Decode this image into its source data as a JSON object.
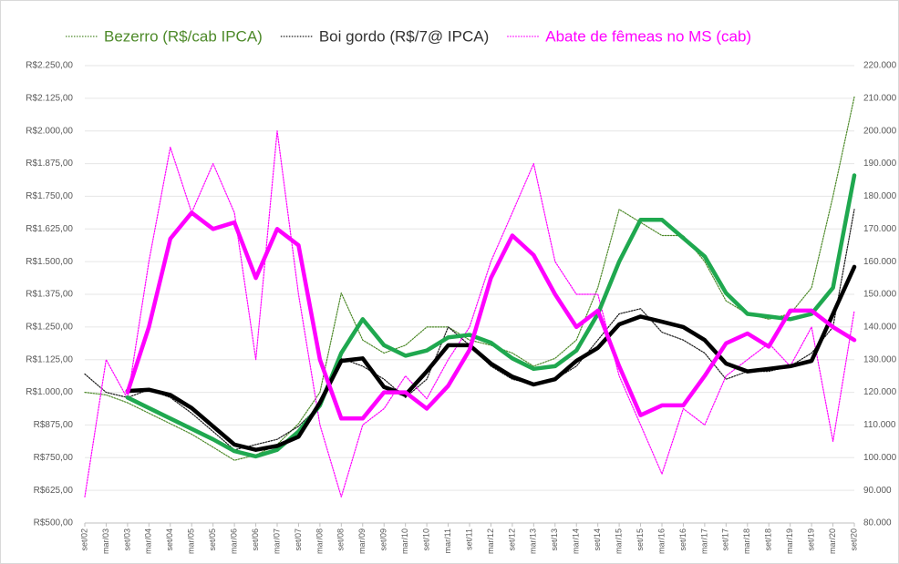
{
  "chart_data": {
    "type": "line",
    "categories": [
      "set/02",
      "mar/03",
      "set/03",
      "mar/04",
      "set/04",
      "mar/05",
      "set/05",
      "mar/06",
      "set/06",
      "mar/07",
      "set/07",
      "mar/08",
      "set/08",
      "mar/09",
      "set/09",
      "mar/10",
      "set/10",
      "mar/11",
      "set/11",
      "mar/12",
      "set/12",
      "mar/13",
      "set/13",
      "mar/14",
      "set/14",
      "mar/15",
      "set/15",
      "mar/16",
      "set/16",
      "mar/17",
      "set/17",
      "mar/18",
      "set/18",
      "mar/19",
      "set/19",
      "mar/20",
      "set/20"
    ],
    "ylim": [
      500,
      2250
    ],
    "yticks": [
      {
        "value": 500,
        "label": "R$500,00"
      },
      {
        "value": 625,
        "label": "R$625,00"
      },
      {
        "value": 750,
        "label": "R$750,00"
      },
      {
        "value": 875,
        "label": "R$875,00"
      },
      {
        "value": 1000,
        "label": "R$1.000,00"
      },
      {
        "value": 1125,
        "label": "R$1.125,00"
      },
      {
        "value": 1250,
        "label": "R$1.250,00"
      },
      {
        "value": 1375,
        "label": "R$1.375,00"
      },
      {
        "value": 1500,
        "label": "R$1.500,00"
      },
      {
        "value": 1625,
        "label": "R$1.625,00"
      },
      {
        "value": 1750,
        "label": "R$1.750,00"
      },
      {
        "value": 1875,
        "label": "R$1.875,00"
      },
      {
        "value": 2000,
        "label": "R$2.000,00"
      },
      {
        "value": 2125,
        "label": "R$2.125,00"
      },
      {
        "value": 2250,
        "label": "R$2.250,00"
      }
    ],
    "y2lim": [
      80000,
      220000
    ],
    "y2ticks": [
      {
        "value": 80000,
        "label": "80.000"
      },
      {
        "value": 90000,
        "label": "90.000"
      },
      {
        "value": 100000,
        "label": "100.000"
      },
      {
        "value": 110000,
        "label": "110.000"
      },
      {
        "value": 120000,
        "label": "120.000"
      },
      {
        "value": 130000,
        "label": "130.000"
      },
      {
        "value": 140000,
        "label": "140.000"
      },
      {
        "value": 150000,
        "label": "150.000"
      },
      {
        "value": 160000,
        "label": "160.000"
      },
      {
        "value": 170000,
        "label": "170.000"
      },
      {
        "value": 180000,
        "label": "180.000"
      },
      {
        "value": 190000,
        "label": "190.000"
      },
      {
        "value": 200000,
        "label": "200.000"
      },
      {
        "value": 210000,
        "label": "210.000"
      },
      {
        "value": 220000,
        "label": "220.000"
      }
    ],
    "grid": true,
    "series": [
      {
        "name": "Bezerro (R$/cab IPCA)",
        "color": "#4e8a2a",
        "dash": "dotted",
        "values": [
          1000,
          990,
          960,
          920,
          880,
          840,
          790,
          740,
          760,
          800,
          880,
          1000,
          1380,
          1200,
          1150,
          1180,
          1250,
          1250,
          1200,
          1180,
          1150,
          1100,
          1130,
          1200,
          1400,
          1700,
          1650,
          1600,
          1600,
          1500,
          1350,
          1300,
          1280,
          1300,
          1400,
          1750,
          2130
        ]
      },
      {
        "name": "Boi gordo (R$/7@ IPCA)",
        "color": "#1a1a1a",
        "dash": "dotted",
        "values": [
          1070,
          1000,
          980,
          1010,
          980,
          920,
          850,
          780,
          800,
          820,
          870,
          950,
          1130,
          1100,
          1050,
          980,
          1050,
          1250,
          1180,
          1100,
          1050,
          1030,
          1050,
          1100,
          1200,
          1300,
          1320,
          1230,
          1200,
          1150,
          1050,
          1080,
          1080,
          1100,
          1150,
          1250,
          1700
        ]
      },
      {
        "name": "Abate de fêmeas no MS (cab)",
        "color": "#ff00ff",
        "dash": "dotted",
        "axis": "y2",
        "values": [
          88000,
          130000,
          118000,
          160000,
          195000,
          175000,
          190000,
          175000,
          130000,
          200000,
          150000,
          110000,
          88000,
          110000,
          115000,
          125000,
          118000,
          130000,
          140000,
          160000,
          175000,
          190000,
          160000,
          150000,
          150000,
          125000,
          110000,
          95000,
          115000,
          110000,
          125000,
          130000,
          135000,
          128000,
          140000,
          105000,
          145000
        ]
      },
      {
        "color": "#1fa84f",
        "dash": "solid",
        "values": [
          null,
          null,
          980,
          940,
          900,
          860,
          820,
          775,
          755,
          780,
          850,
          950,
          1150,
          1280,
          1180,
          1140,
          1160,
          1210,
          1220,
          1190,
          1130,
          1090,
          1100,
          1160,
          1300,
          1500,
          1660,
          1660,
          1590,
          1520,
          1380,
          1300,
          1290,
          1280,
          1300,
          1400,
          1830
        ]
      },
      {
        "color": "#000000",
        "dash": "solid",
        "values": [
          null,
          null,
          1005,
          1010,
          990,
          940,
          870,
          800,
          780,
          795,
          830,
          960,
          1120,
          1130,
          1020,
          990,
          1080,
          1180,
          1180,
          1110,
          1060,
          1030,
          1050,
          1120,
          1170,
          1260,
          1290,
          1270,
          1250,
          1200,
          1110,
          1080,
          1090,
          1100,
          1120,
          1300,
          1480
        ]
      },
      {
        "color": "#ff00ff",
        "dash": "solid",
        "axis": "y2",
        "values": [
          null,
          null,
          120000,
          140000,
          167000,
          175000,
          170000,
          172000,
          155000,
          170000,
          165000,
          130000,
          112000,
          112000,
          120000,
          120000,
          115000,
          122000,
          133000,
          155000,
          168000,
          162000,
          150000,
          140000,
          145000,
          128000,
          113000,
          116000,
          116000,
          125000,
          135000,
          138000,
          134000,
          145000,
          145000,
          140000,
          136000
        ]
      }
    ]
  }
}
